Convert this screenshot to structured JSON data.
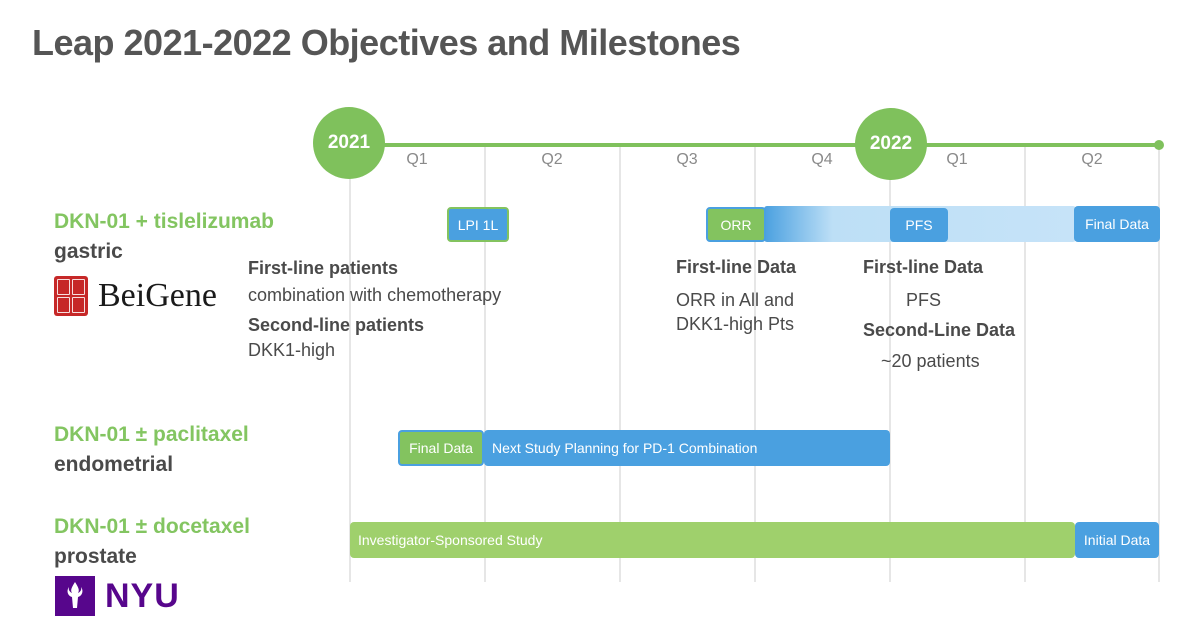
{
  "page": {
    "title": "Leap 2021-2022 Objectives and Milestones"
  },
  "timeline": {
    "years": [
      "2021",
      "2022"
    ],
    "quarters": [
      "Q1",
      "Q2",
      "Q3",
      "Q4",
      "Q1",
      "Q2"
    ],
    "colors": {
      "green": "#7fc15c",
      "blue": "#4aa0e0",
      "grid": "#e6e6e6"
    }
  },
  "programs": [
    {
      "drug": "DKN-01 + tislelizumab",
      "indication": "gastric",
      "partner": "BeiGene",
      "milestones": [
        "LPI 1L",
        "ORR",
        "PFS",
        "Final Data"
      ],
      "notes": {
        "first_line_patients": "First-line patients",
        "combination": "combination with chemotherapy",
        "second_line_patients": "Second-line patients",
        "dkk1_high": "DKK1-high",
        "first_line_data_a": "First-line Data",
        "orr_line1": "ORR in All and",
        "orr_line2": "DKK1-high Pts",
        "first_line_data_b": "First-line Data",
        "pfs": "PFS",
        "second_line_data": "Second-Line Data",
        "patients": "~20 patients"
      }
    },
    {
      "drug": "DKN-01 ± paclitaxel",
      "indication": "endometrial",
      "milestones": [
        "Final Data",
        "Next Study Planning for PD-1 Combination"
      ]
    },
    {
      "drug": "DKN-01 ± docetaxel",
      "indication": "prostate",
      "partner": "NYU",
      "milestones": [
        "Investigator-Sponsored Study",
        "Initial Data"
      ]
    }
  ]
}
